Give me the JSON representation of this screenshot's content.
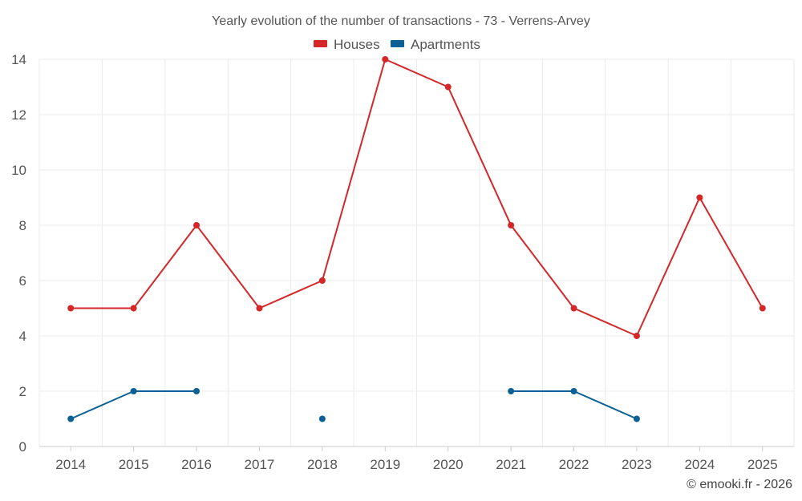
{
  "chart_data": {
    "type": "line",
    "title": "Yearly evolution of the number of transactions - 73 - Verrens-Arvey",
    "categories": [
      "2014",
      "2015",
      "2016",
      "2017",
      "2018",
      "2019",
      "2020",
      "2021",
      "2022",
      "2023",
      "2024",
      "2025"
    ],
    "series": [
      {
        "name": "Houses",
        "color": "#d62728",
        "values": [
          5,
          5,
          8,
          5,
          6,
          14,
          13,
          8,
          5,
          4,
          9,
          5
        ]
      },
      {
        "name": "Apartments",
        "color": "#0b6196",
        "values": [
          1,
          2,
          2,
          null,
          1,
          null,
          null,
          2,
          2,
          1,
          null,
          null
        ]
      }
    ],
    "yticks": [
      0,
      2,
      4,
      6,
      8,
      10,
      12,
      14
    ],
    "ylim": [
      0,
      14
    ],
    "xlabel": "",
    "ylabel": "",
    "legend": "top-center",
    "grid": true
  },
  "credit": "© emooki.fr - 2026"
}
